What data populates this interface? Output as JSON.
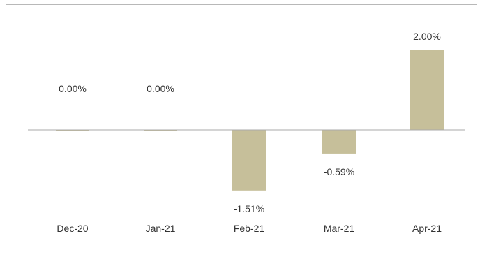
{
  "chart_data": {
    "type": "bar",
    "title": "",
    "xlabel": "",
    "ylabel": "",
    "categories": [
      "Dec-20",
      "Jan-21",
      "Feb-21",
      "Mar-21",
      "Apr-21"
    ],
    "values": [
      0.0,
      0.0,
      -1.51,
      -0.59,
      2.0
    ],
    "data_labels": [
      "0.00%",
      "0.00%",
      "-1.51%",
      "-0.59%",
      "2.00%"
    ],
    "ylim": [
      -2.5,
      2.5
    ],
    "grid": false,
    "legend": "none",
    "colors": {
      "bar": "#c6bf9a",
      "axis": "#a9a9a9"
    }
  }
}
